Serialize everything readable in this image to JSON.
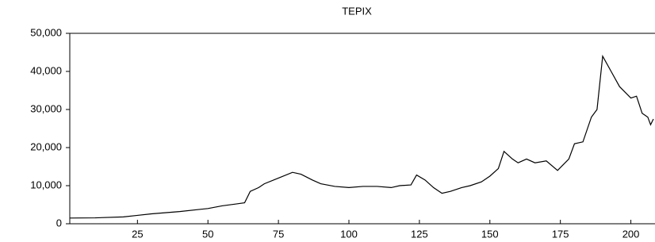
{
  "chart_data": {
    "type": "line",
    "title": "TEPIX",
    "x": [
      1,
      10,
      20,
      25,
      30,
      40,
      50,
      55,
      60,
      63,
      65,
      68,
      70,
      75,
      80,
      83,
      87,
      90,
      95,
      100,
      105,
      110,
      115,
      118,
      122,
      124,
      127,
      130,
      133,
      136,
      140,
      143,
      147,
      150,
      153,
      155,
      158,
      160,
      163,
      166,
      170,
      174,
      178,
      180,
      183,
      186,
      188,
      190,
      193,
      196,
      200,
      202,
      204,
      206,
      207,
      208
    ],
    "series": [
      {
        "name": "TEPIX",
        "color": "#000000",
        "values": [
          1500,
          1550,
          1800,
          2200,
          2600,
          3200,
          4000,
          4700,
          5200,
          5500,
          8500,
          9500,
          10500,
          12000,
          13500,
          13000,
          11500,
          10500,
          9800,
          9500,
          9800,
          9800,
          9500,
          10000,
          10200,
          12800,
          11500,
          9500,
          8000,
          8500,
          9500,
          10000,
          11000,
          12500,
          14500,
          19000,
          17000,
          16000,
          17000,
          16000,
          16500,
          14000,
          17000,
          21000,
          21500,
          28000,
          30000,
          44000,
          40000,
          36000,
          33000,
          33500,
          29000,
          28000,
          26000,
          27500
        ]
      }
    ],
    "xlim": [
      1,
      208
    ],
    "xticks": [
      25,
      50,
      75,
      100,
      125,
      150,
      175,
      200
    ],
    "ylim": [
      0,
      50000
    ],
    "yticks": [
      0,
      {
        "value": 10000,
        "label": "10,000"
      },
      {
        "value": 20000,
        "label": "20,000"
      },
      {
        "value": 30000,
        "label": "30,000"
      },
      {
        "value": 40000,
        "label": "40,000"
      },
      {
        "value": 50000,
        "label": "50,000"
      }
    ]
  }
}
